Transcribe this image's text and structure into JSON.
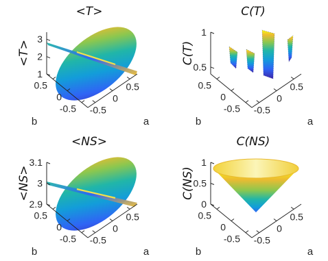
{
  "colors": {
    "colormap": "parula",
    "parula_stops": [
      "#3e26a8",
      "#2f64f5",
      "#139dd9",
      "#21b6a8",
      "#8bc74f",
      "#ecbb31",
      "#f9fb0e"
    ]
  },
  "chart_data": [
    {
      "type": "surface3d",
      "title": "<T>",
      "zlabel": "<T>",
      "xlabel": "a",
      "ylabel": "b",
      "xticks": [
        "0.5",
        "0",
        "-0.5"
      ],
      "yticks": [
        "0.5",
        "0",
        "-0.5"
      ],
      "zticks": [
        "1",
        "2",
        "3"
      ],
      "zlim": [
        1,
        3.4
      ],
      "surface": "ellipse",
      "grid": false
    },
    {
      "type": "surface3d",
      "title": "C(T)",
      "zlabel": "C(T)",
      "xlabel": "a",
      "ylabel": "b",
      "xticks": [
        "0.5",
        "0",
        "-0.5"
      ],
      "yticks": [
        "0.5",
        "0",
        "-0.5"
      ],
      "zticks": [
        "0.5",
        "1"
      ],
      "zlim": [
        0.4,
        1
      ],
      "surface": "strips",
      "grid": false
    },
    {
      "type": "surface3d",
      "title": "<NS>",
      "zlabel": "<NS>",
      "xlabel": "a",
      "ylabel": "b",
      "xticks": [
        "0.5",
        "0",
        "-0.5"
      ],
      "yticks": [
        "0.5",
        "0",
        "-0.5"
      ],
      "zticks": [
        "2.9",
        "3",
        "3.1"
      ],
      "zlim": [
        2.9,
        3.1
      ],
      "surface": "ellipse",
      "grid": false
    },
    {
      "type": "surface3d",
      "title": "C(NS)",
      "zlabel": "C(NS)",
      "xlabel": "a",
      "ylabel": "b",
      "xticks": [
        "0.5",
        "0",
        "-0.5"
      ],
      "yticks": [
        "0.5",
        "0",
        "-0.5"
      ],
      "zticks": [
        "0",
        "0.5",
        "1"
      ],
      "zlim": [
        0,
        1
      ],
      "surface": "cone",
      "grid": false
    }
  ]
}
